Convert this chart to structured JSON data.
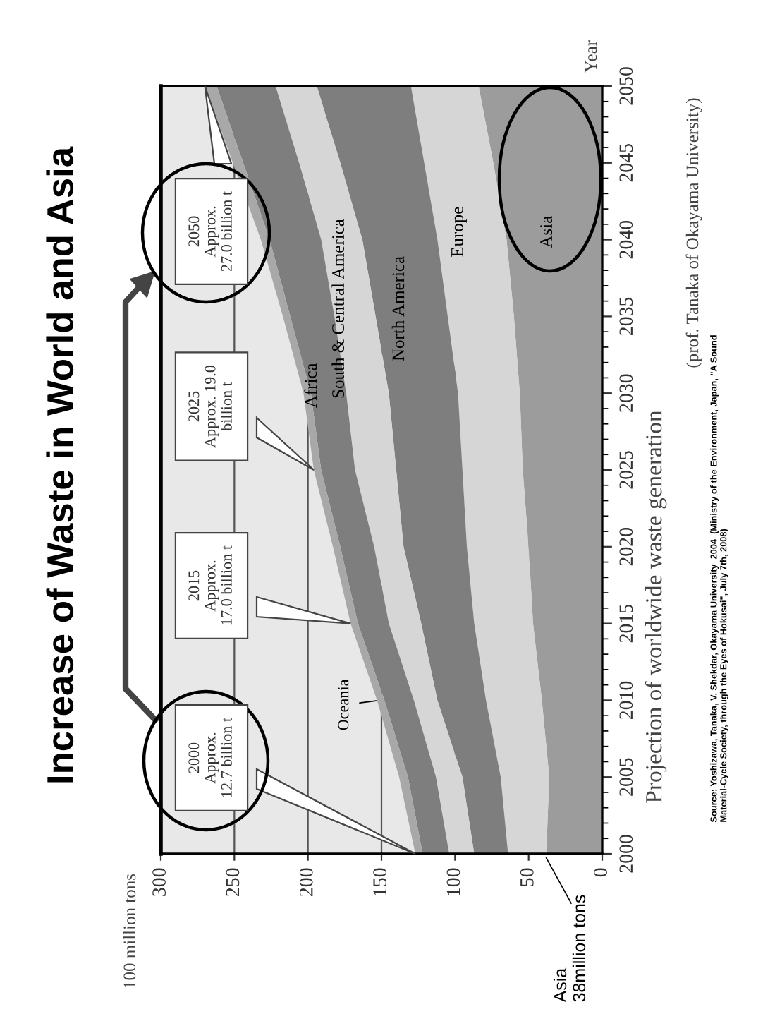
{
  "chart_data": {
    "type": "area",
    "stacked": true,
    "title": "Increase of Waste in World and Asia",
    "orientation": "horizontal",
    "ylabel": "100 million tons",
    "legend": false,
    "x": [
      2000,
      2005,
      2010,
      2015,
      2020,
      2025,
      2030,
      2035,
      2040,
      2045,
      2050
    ],
    "series": [
      {
        "name": "Asia",
        "color": "#9c9c9c",
        "values": [
          38,
          36,
          41,
          47,
          50,
          54,
          56,
          60,
          65,
          74,
          84
        ]
      },
      {
        "name": "Europe",
        "color": "#d6d6d6",
        "values": [
          26,
          33,
          38,
          40,
          42,
          41,
          42,
          45,
          47,
          47,
          46
        ]
      },
      {
        "name": "North America",
        "color": "#7e7e7e",
        "values": [
          23,
          26,
          33,
          36,
          43,
          45,
          47,
          49,
          51,
          57,
          64
        ]
      },
      {
        "name": "South & Central America",
        "color": "#d6d6d6",
        "values": [
          17,
          18,
          16,
          22,
          20,
          28,
          29,
          28,
          28,
          28,
          28
        ]
      },
      {
        "name": "Africa",
        "color": "#7e7e7e",
        "values": [
          18,
          19,
          20,
          21,
          23,
          23,
          24,
          30,
          35,
          38,
          40
        ]
      },
      {
        "name": "Oceania",
        "color": "#a8a8a8",
        "values": [
          5,
          6,
          5,
          5,
          5,
          5,
          5,
          5,
          6,
          7,
          8
        ]
      }
    ],
    "ylim": [
      2000,
      2050
    ],
    "yticks": [
      2000,
      2005,
      2010,
      2015,
      2020,
      2025,
      2030,
      2035,
      2040,
      2045,
      2050
    ],
    "xlim": [
      300,
      0
    ],
    "xticks": [
      0,
      50,
      100,
      150,
      200,
      250,
      300
    ],
    "grid": "x",
    "annotations": [
      "2000\nApprox.\n12.7 billion t",
      "2015\nApprox.\n17.0 billion t",
      "2025\nApprox. 19.0\nbillion t",
      "2050\nApprox.\n27.0 billion t",
      "Asia\n38million tons",
      "Year",
      "Projection of worldwide waste generation",
      "(prof. Tanaka of Okayama University)",
      "Source: Yoshizawa, Tanaka, V. Shekdar, Okayama University  2004  (Ministry of the Environment, Japan, \"A Sound\nMaterial-Cycle Society, through the Eyes of Hokusai\", July 7th, 2008)"
    ]
  }
}
